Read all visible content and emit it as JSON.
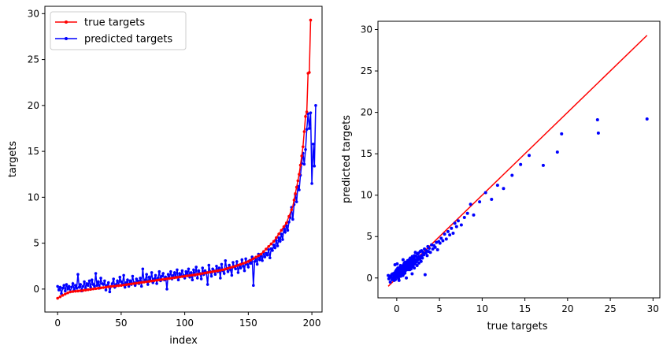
{
  "chart_data": [
    {
      "type": "line",
      "xlabel": "index",
      "ylabel": "targets",
      "xlim": [
        -10,
        208
      ],
      "ylim": [
        -2.5,
        30.8
      ],
      "xticks": [
        0,
        50,
        100,
        150,
        200
      ],
      "yticks": [
        0,
        5,
        10,
        15,
        20,
        25,
        30
      ],
      "legend_position": "top-left",
      "legend": [
        {
          "label": "true targets",
          "color": "#ff0000"
        },
        {
          "label": "predicted targets",
          "color": "#0000ff"
        }
      ],
      "series": [
        {
          "name": "true targets",
          "color": "#ff0000",
          "anchors": [
            [
              0,
              -1.0
            ],
            [
              5,
              -0.6
            ],
            [
              10,
              -0.3
            ],
            [
              20,
              -0.15
            ],
            [
              30,
              0.05
            ],
            [
              40,
              0.25
            ],
            [
              50,
              0.4
            ],
            [
              60,
              0.6
            ],
            [
              70,
              0.8
            ],
            [
              80,
              1.0
            ],
            [
              90,
              1.2
            ],
            [
              100,
              1.4
            ],
            [
              110,
              1.6
            ],
            [
              120,
              1.85
            ],
            [
              130,
              2.1
            ],
            [
              140,
              2.5
            ],
            [
              150,
              3.0
            ],
            [
              160,
              3.8
            ],
            [
              170,
              5.2
            ],
            [
              180,
              7.2
            ],
            [
              185,
              9.0
            ],
            [
              190,
              12.5
            ],
            [
              193,
              15.5
            ],
            [
              195,
              18.8
            ],
            [
              196,
              19.3
            ],
            [
              197,
              23.5
            ],
            [
              198,
              23.6
            ],
            [
              199,
              29.3
            ]
          ]
        },
        {
          "name": "predicted targets",
          "color": "#0000ff",
          "samples": [
            0.3,
            -0.1,
            0.2,
            -0.5,
            0.1,
            0.4,
            -0.2,
            0.5,
            0.0,
            0.3,
            -0.3,
            0.2,
            0.6,
            -0.1,
            0.4,
            0.1,
            1.6,
            0.2,
            0.5,
            -0.2,
            0.3,
            0.8,
            0.1,
            0.6,
            0.4,
            0.9,
            0.2,
            1.0,
            0.5,
            0.3,
            1.7,
            0.4,
            0.8,
            0.1,
            1.2,
            0.6,
            0.5,
            0.9,
            -0.1,
            0.4,
            0.7,
            -0.3,
            0.3,
            0.6,
            1.1,
            0.2,
            0.5,
            0.9,
            0.4,
            1.3,
            0.8,
            0.6,
            1.5,
            0.2,
            0.7,
            1.0,
            0.3,
            0.9,
            0.5,
            1.4,
            0.7,
            0.4,
            1.1,
            0.9,
            0.6,
            1.2,
            0.3,
            2.2,
            0.8,
            1.0,
            1.6,
            0.5,
            1.3,
            0.9,
            1.8,
            0.7,
            1.1,
            1.5,
            0.6,
            1.2,
            1.9,
            0.9,
            1.4,
            1.7,
            1.0,
            1.3,
            0.0,
            1.6,
            1.2,
            1.9,
            1.1,
            1.5,
            1.8,
            1.3,
            2.1,
            1.0,
            1.7,
            1.4,
            2.0,
            1.5,
            1.2,
            1.9,
            1.6,
            2.2,
            1.3,
            1.8,
            1.0,
            2.1,
            1.5,
            2.4,
            1.2,
            2.0,
            1.7,
            1.1,
            2.3,
            1.6,
            2.0,
            1.8,
            0.5,
            2.6,
            1.9,
            1.4,
            2.2,
            2.0,
            1.6,
            2.5,
            1.9,
            2.3,
            1.2,
            2.7,
            2.0,
            1.7,
            3.1,
            2.2,
            1.9,
            2.6,
            2.1,
            1.5,
            2.9,
            2.4,
            2.2,
            3.0,
            1.8,
            2.6,
            2.3,
            3.2,
            2.5,
            2.0,
            3.3,
            2.7,
            2.4,
            3.1,
            2.8,
            3.5,
            0.4,
            3.0,
            3.3,
            2.7,
            3.8,
            3.2,
            3.6,
            3.1,
            4.0,
            3.5,
            3.9,
            3.7,
            4.3,
            3.4,
            4.4,
            4.2,
            4.8,
            4.5,
            5.3,
            4.7,
            5.6,
            5.2,
            6.0,
            5.4,
            6.6,
            6.2,
            6.9,
            6.4,
            7.3,
            7.8,
            8.9,
            7.6,
            9.2,
            10.3,
            9.5,
            11.2,
            10.8,
            12.4,
            13.7,
            14.8,
            13.6,
            15.2,
            17.4,
            19.1,
            17.5,
            19.2,
            11.5,
            15.8,
            13.4,
            20.0
          ]
        }
      ]
    },
    {
      "type": "scatter",
      "xlabel": "true targets",
      "ylabel": "predicted targets",
      "xlim": [
        -2.2,
        30.8
      ],
      "ylim": [
        -2.4,
        31.0
      ],
      "xticks": [
        0,
        5,
        10,
        15,
        20,
        25,
        30
      ],
      "yticks": [
        0,
        5,
        10,
        15,
        20,
        25,
        30
      ],
      "reference_line": {
        "from": [
          -1.0,
          -1.0
        ],
        "to": [
          29.3,
          29.3
        ],
        "color": "#ff0000"
      },
      "point_color": "#0000ff",
      "note": "points pair true targets (series 1) with predicted targets (series 2) by index"
    }
  ]
}
